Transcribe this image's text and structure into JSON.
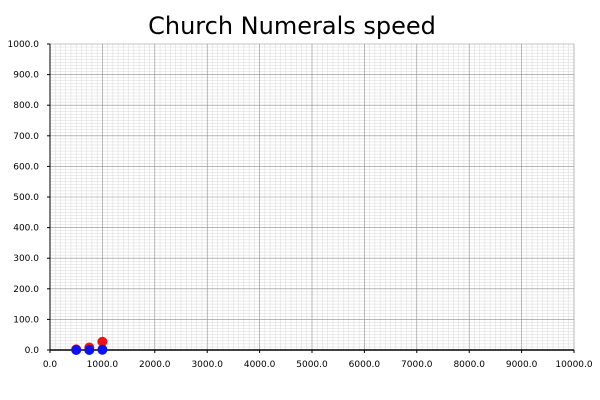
{
  "chart_data": {
    "type": "scatter",
    "title": "Church Numerals speed",
    "xlabel": "",
    "ylabel": "",
    "xlim": [
      0,
      10000
    ],
    "ylim": [
      0,
      1000
    ],
    "x_ticks": [
      "0.0",
      "1000.0",
      "2000.0",
      "3000.0",
      "4000.0",
      "5000.0",
      "6000.0",
      "7000.0",
      "8000.0",
      "9000.0",
      "10000.0"
    ],
    "y_ticks": [
      "0.0",
      "100.0",
      "200.0",
      "300.0",
      "400.0",
      "500.0",
      "600.0",
      "700.0",
      "800.0",
      "900.0",
      "1000.0"
    ],
    "grid": true,
    "series": [
      {
        "color": "#e8141a",
        "points": [
          {
            "x": 500,
            "y": 2
          },
          {
            "x": 750,
            "y": 8
          },
          {
            "x": 1000,
            "y": 27
          }
        ]
      },
      {
        "color": "#1010e8",
        "points": [
          {
            "x": 500,
            "y": 0
          },
          {
            "x": 750,
            "y": 0
          },
          {
            "x": 1000,
            "y": 1
          }
        ]
      }
    ]
  }
}
